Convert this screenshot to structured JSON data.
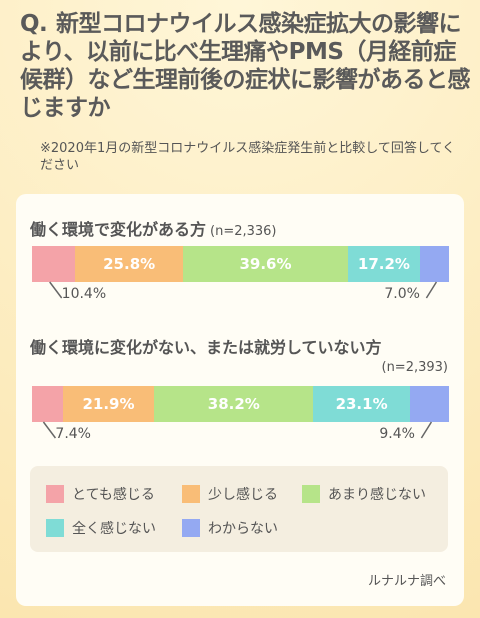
{
  "question": {
    "prefix": "Q.",
    "text": "新型コロナウイルス感染症拡大の影響により、以前に比べ生理痛やPMS（月経前症候群）など生理前後の症状に影響があると感じますか"
  },
  "note": "※2020年1月の新型コロナウイルス感染症発生前と比較して回答してください",
  "source": "ルナルナ調べ",
  "colors": {
    "strong": "#f4a3a8",
    "little": "#f9bd77",
    "notmuch": "#b6e489",
    "none": "#7fdcd6",
    "unknown": "#94a9f2"
  },
  "chart_data": {
    "type": "bar",
    "orientation": "horizontal-stacked-100",
    "unit": "%",
    "series_names": [
      "とても感じる",
      "少し感じる",
      "あまり感じない",
      "全く感じない",
      "わからない"
    ],
    "groups": [
      {
        "title": "働く環境で変化がある方",
        "n": "(n=2,336)",
        "values": [
          10.4,
          25.8,
          39.6,
          17.2,
          7.0
        ],
        "labels": [
          "10.4%",
          "25.8%",
          "39.6%",
          "17.2%",
          "7.0%"
        ]
      },
      {
        "title": "働く環境に変化がない、または就労していない方",
        "n": "(n=2,393)",
        "values": [
          7.4,
          21.9,
          38.2,
          23.1,
          9.4
        ],
        "labels": [
          "7.4%",
          "21.9%",
          "38.2%",
          "23.1%",
          "9.4%"
        ]
      }
    ]
  }
}
